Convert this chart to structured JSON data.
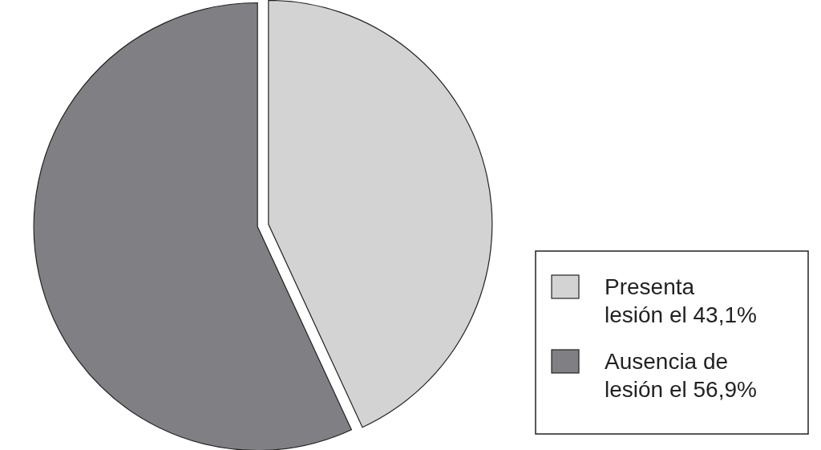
{
  "chart_data": {
    "type": "pie",
    "categories": [
      "Presenta lesión el 43,1%",
      "Ausencia de lesión el 56,9%"
    ],
    "values": [
      43.1,
      56.9
    ],
    "colors": [
      "#d3d3d3",
      "#808084"
    ],
    "legend": "right"
  }
}
